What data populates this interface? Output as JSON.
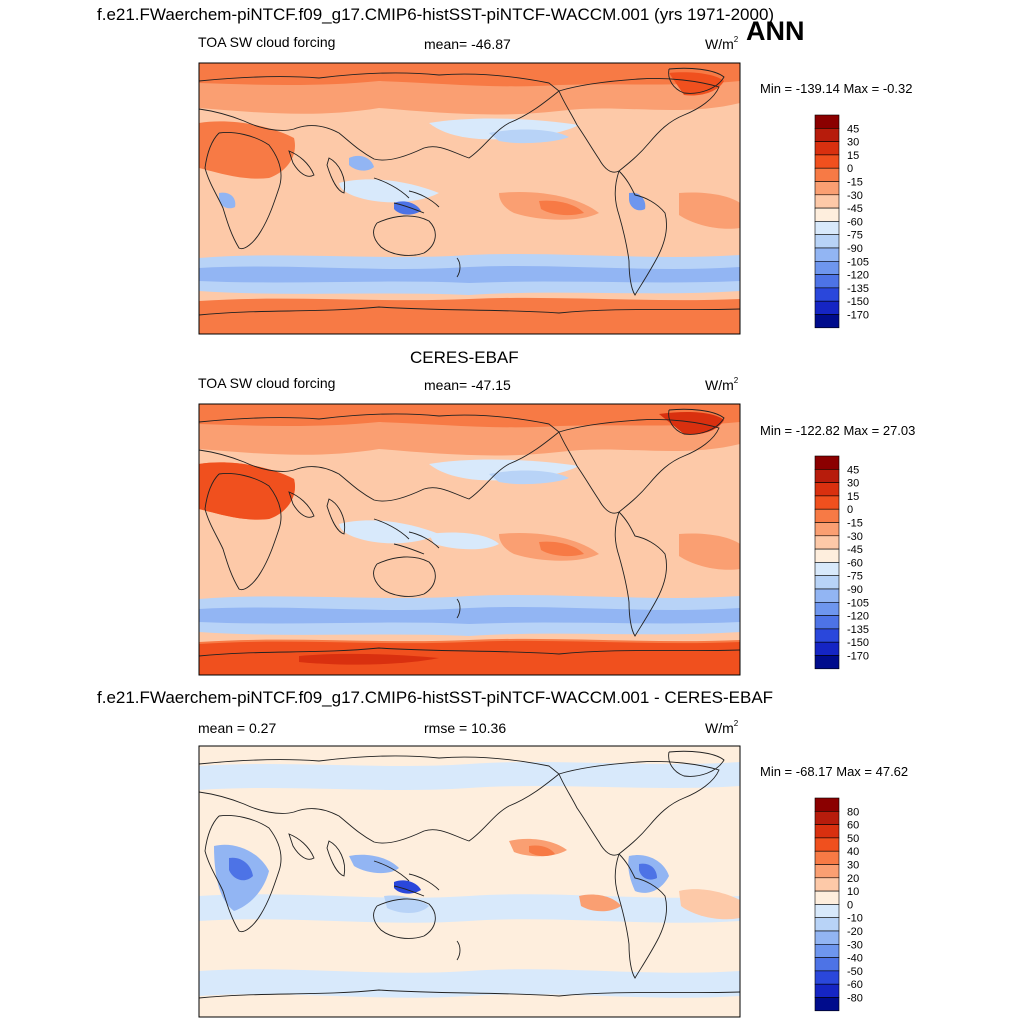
{
  "season": "ANN",
  "units": "W/m",
  "units_sup": "2",
  "panel_top": {
    "title": "f.e21.FWaerchem-piNTCF.f09_g17.CMIP6-histSST-piNTCF-WACCM.001 (yrs 1971-2000)",
    "variable": "TOA SW cloud forcing",
    "mean_text": "mean= -46.87",
    "minmax_text": "Min = -139.14 Max =  -0.32"
  },
  "panel_mid": {
    "title": "CERES-EBAF",
    "variable": "TOA SW cloud forcing",
    "mean_text": "mean= -47.15",
    "minmax_text": "Min = -122.82 Max =  27.03"
  },
  "panel_bot": {
    "title": "f.e21.FWaerchem-piNTCF.f09_g17.CMIP6-histSST-piNTCF-WACCM.001 - CERES-EBAF",
    "mean_text": "mean =   0.27",
    "rmse_text": "rmse =  10.36",
    "minmax_text": "Min = -68.17 Max =  47.62"
  },
  "colorbar_field": {
    "labels": [
      "45",
      "30",
      "15",
      "0",
      "-15",
      "-30",
      "-45",
      "-60",
      "-75",
      "-90",
      "-105",
      "-120",
      "-135",
      "-150",
      "-170"
    ],
    "colors": [
      "#8b0000",
      "#b71c0c",
      "#d9300f",
      "#f0501e",
      "#f77a45",
      "#fa9f72",
      "#fdc9a8",
      "#feeedd",
      "#d8e9fb",
      "#b8d3f7",
      "#92b5f3",
      "#6e96ee",
      "#4d73e6",
      "#2a47db",
      "#1525c4",
      "#000c8c"
    ]
  },
  "colorbar_diff": {
    "labels": [
      "80",
      "60",
      "50",
      "40",
      "30",
      "20",
      "10",
      "0",
      "-10",
      "-20",
      "-30",
      "-40",
      "-50",
      "-60",
      "-80"
    ],
    "colors": [
      "#8b0000",
      "#b71c0c",
      "#d9300f",
      "#f0501e",
      "#f77a45",
      "#fa9f72",
      "#fdc9a8",
      "#feeedd",
      "#d8e9fb",
      "#b8d3f7",
      "#92b5f3",
      "#6e96ee",
      "#4d73e6",
      "#2a47db",
      "#1525c4",
      "#000c8c"
    ]
  }
}
